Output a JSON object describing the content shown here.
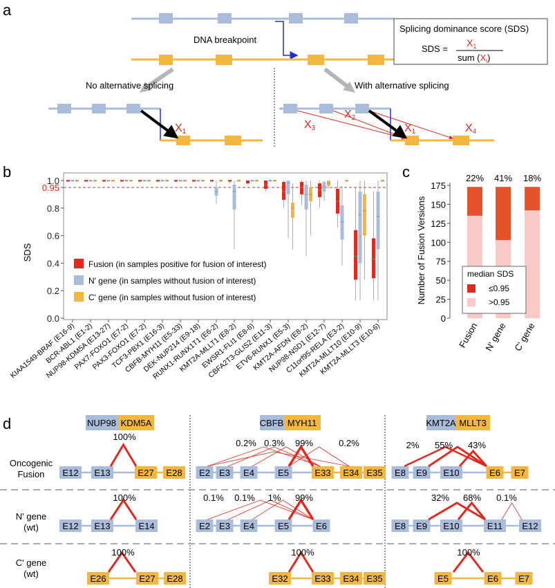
{
  "panel_labels": {
    "a": "a",
    "b": "b",
    "c": "c",
    "d": "d"
  },
  "colors": {
    "n_gene": "#a9bcda",
    "c_gene": "#f2b740",
    "fusion": "#e0291f",
    "fusion_light": "#f8c9c6",
    "fusion_dark": "#e6522c",
    "arrow_blue": "#1f2fd1",
    "grey_arrow": "#b5b5b5"
  },
  "panel_a": {
    "breakpoint_label": "DNA breakpoint",
    "no_alt": "No alternative splicing",
    "with_alt": "With alternative splicing",
    "sds_box_title": "Splicing dominance score (SDS)",
    "sds_lhs": "SDS =",
    "sds_num": "X",
    "sds_num_sub": "1",
    "sds_den_prefix": "sum (",
    "sds_den_x": "X",
    "sds_den_sub": "i",
    "sds_den_suffix": ")",
    "x1": "X",
    "x1_sub": "1",
    "x2": "X",
    "x2_sub": "2",
    "x3": "X",
    "x3_sub": "3",
    "x4": "X",
    "x4_sub": "4",
    "x1b": "X",
    "x1b_sub": "1"
  },
  "panel_b": {
    "ylabel": "SDS",
    "threshold_label": "0.95",
    "legend": [
      "Fusion (in samples positive for fusion of interest)",
      "N' gene (in samples without fusion of interest)",
      "C' gene (in samples without fusion of interest)"
    ]
  },
  "panel_c": {
    "ylabel": "Number of Fusion Versions",
    "legend_title": "median SDS",
    "legend_items": [
      "≤0.95",
      ">0.95"
    ]
  },
  "panel_d": {
    "row_labels": [
      [
        "Oncogenic",
        "Fusion"
      ],
      [
        "N' gene",
        "(wt)"
      ],
      [
        "C' gene",
        "(wt)"
      ]
    ],
    "genes": [
      {
        "n": "NUP98",
        "c": "KDM5A"
      },
      {
        "n": "CBFB",
        "c": "MYH11"
      },
      {
        "n": "KMT2A",
        "c": "MLLT3"
      }
    ],
    "col1": {
      "fusion_exons": [
        "E12",
        "E13",
        "E27",
        "E28"
      ],
      "fusion_pct": [
        "100%"
      ],
      "n_exons": [
        "E12",
        "E13",
        "E14"
      ],
      "n_pct": [
        "100%"
      ],
      "c_exons": [
        "E26",
        "E27",
        "E28"
      ],
      "c_pct": [
        "100%"
      ]
    },
    "col2": {
      "fusion_exons": [
        "E2",
        "E3",
        "E4",
        "E5",
        "E33",
        "E34",
        "E35"
      ],
      "fusion_pct": [
        "0.2%",
        "0.3%",
        "99%",
        "0.2%"
      ],
      "n_exons": [
        "E2",
        "E3",
        "E4",
        "E5",
        "E6"
      ],
      "n_pct": [
        "0.1%",
        "0.1%",
        "1%",
        "99%"
      ],
      "c_exons": [
        "E32",
        "E33",
        "E34",
        "E35"
      ],
      "c_pct": [
        "100%"
      ]
    },
    "col3": {
      "fusion_exons": [
        "E8",
        "E9",
        "E10",
        "E6",
        "E7"
      ],
      "fusion_pct": [
        "2%",
        "55%",
        "43%"
      ],
      "n_exons": [
        "E8",
        "E9",
        "E10",
        "E11",
        "E12"
      ],
      "n_pct": [
        "32%",
        "68%",
        "0.1%"
      ],
      "c_exons": [
        "E5",
        "E6",
        "E7"
      ],
      "c_pct": [
        "100%"
      ]
    }
  },
  "chart_data": [
    {
      "type": "box",
      "panel": "b",
      "ylabel": "SDS",
      "ylim": [
        0,
        1
      ],
      "yticks": [
        "0.0",
        "0.2",
        "0.4",
        "0.6",
        "0.8",
        "0.95",
        "1.0"
      ],
      "threshold": 0.95,
      "categories": [
        "KIAA1549-BRAF (E16-9)",
        "BCR-ABL1 (E1-2)",
        "NUP98-KDM5A (E13-27)",
        "PAX7-FOXO1 (E7-2)",
        "PAX3-FOXO1 (E7-2)",
        "TCF3-PBX1 (E16-3)",
        "CBFB-MYH11 (E5-33)",
        "DEK-NUP214 (E9-18)",
        "RUNX1-RUNX1T1 (E6-2)",
        "KMT2A-MLLT1 (E8-2)",
        "EWSR1-FLI1 (E8-6)",
        "CBFA2T3-GLIS2 (E11-3)",
        "ETV6-RUNX1 (E5-3)",
        "KMT2A-AFDN (E8-2)",
        "NUP98-NSD1 (E12-7)",
        "C11orf95-RELA (E3-2)",
        "KMT2A-MLLT10 (E10-9)",
        "KMT2A-MLLT3 (E10-6)"
      ],
      "series": [
        {
          "name": "Fusion",
          "boxes": [
            [
              1,
              1,
              1,
              1,
              1
            ],
            [
              1,
              1,
              1,
              1,
              1
            ],
            [
              1,
              1,
              1,
              1,
              1
            ],
            [
              1,
              1,
              1,
              1,
              1
            ],
            [
              1,
              1,
              1,
              1,
              1
            ],
            [
              1,
              1,
              1,
              1,
              1
            ],
            [
              0.99,
              1,
              1,
              1,
              1
            ],
            [
              1,
              1,
              1,
              1,
              1
            ],
            [
              1,
              1,
              1,
              1,
              1
            ],
            [
              0.98,
              0.99,
              1,
              1,
              1
            ],
            [
              0.97,
              0.98,
              1,
              1,
              1
            ],
            [
              0.92,
              0.94,
              0.97,
              1,
              1
            ],
            [
              0.8,
              0.86,
              0.92,
              0.99,
              1
            ],
            [
              0.82,
              0.9,
              0.95,
              0.99,
              1
            ],
            [
              0.8,
              0.88,
              0.93,
              0.98,
              1
            ],
            [
              0.66,
              0.76,
              0.85,
              0.94,
              1
            ],
            [
              0.13,
              0.28,
              0.45,
              0.64,
              0.95
            ],
            [
              0.13,
              0.29,
              0.43,
              0.58,
              0.92
            ]
          ]
        },
        {
          "name": "N' gene",
          "boxes": [
            [
              1,
              1,
              1,
              1,
              1
            ],
            [
              1,
              1,
              1,
              1,
              1
            ],
            [
              1,
              1,
              1,
              1,
              1
            ],
            [
              1,
              1,
              1,
              1,
              1
            ],
            [
              1,
              1,
              1,
              1,
              1
            ],
            [
              1,
              1,
              1,
              1,
              1
            ],
            [
              1,
              1,
              1,
              1,
              1
            ],
            [
              1,
              1,
              1,
              1,
              1
            ],
            [
              0.83,
              0.89,
              0.92,
              0.95,
              1
            ],
            [
              0.5,
              0.79,
              0.92,
              0.97,
              1
            ],
            [
              1,
              1,
              1,
              1,
              1
            ],
            [
              1,
              1,
              1,
              1,
              1
            ],
            [
              0.58,
              0.9,
              0.98,
              1,
              1
            ],
            [
              0.45,
              0.79,
              0.9,
              0.97,
              1
            ],
            [
              0.85,
              0.92,
              0.96,
              0.99,
              1
            ],
            [
              0.38,
              0.57,
              0.7,
              0.82,
              0.96
            ],
            [
              0.13,
              0.4,
              0.75,
              0.92,
              1
            ],
            [
              0.13,
              0.5,
              0.74,
              0.92,
              1
            ]
          ]
        },
        {
          "name": "C' gene",
          "boxes": [
            [
              1,
              1,
              1,
              1,
              1
            ],
            [
              1,
              1,
              1,
              1,
              1
            ],
            [
              1,
              1,
              1,
              1,
              1
            ],
            [
              1,
              1,
              1,
              1,
              1
            ],
            [
              1,
              1,
              1,
              1,
              1
            ],
            [
              1,
              1,
              1,
              1,
              1
            ],
            [
              1,
              1,
              1,
              1,
              1
            ],
            [
              1,
              1,
              1,
              1,
              1
            ],
            [
              1,
              1,
              1,
              1,
              1
            ],
            [
              1,
              1,
              1,
              1,
              1
            ],
            [
              1,
              1,
              1,
              1,
              1
            ],
            [
              1,
              1,
              1,
              1,
              1
            ],
            [
              0.5,
              0.73,
              0.8,
              0.84,
              0.98
            ],
            [
              0.6,
              0.85,
              0.9,
              0.95,
              1
            ],
            [
              0.94,
              0.96,
              0.98,
              1,
              1
            ],
            [
              1,
              1,
              1,
              1,
              1
            ],
            [
              0.28,
              0.6,
              0.78,
              0.9,
              1
            ],
            [
              1,
              1,
              1,
              1,
              1
            ]
          ]
        }
      ]
    },
    {
      "type": "bar",
      "panel": "c",
      "stacked": true,
      "ylabel": "Number of Fusion Versions",
      "ylim": [
        0,
        175
      ],
      "yticks": [
        0,
        25,
        50,
        75,
        100,
        125,
        150,
        175
      ],
      "categories": [
        "Fusion",
        "N' gene",
        "C' gene"
      ],
      "top_labels": [
        "22%",
        "41%",
        "18%"
      ],
      "series": [
        {
          "name": ">0.95",
          "values": [
            135,
            103,
            142
          ]
        },
        {
          "name": "≤0.95",
          "values": [
            38,
            70,
            31
          ]
        }
      ]
    }
  ]
}
